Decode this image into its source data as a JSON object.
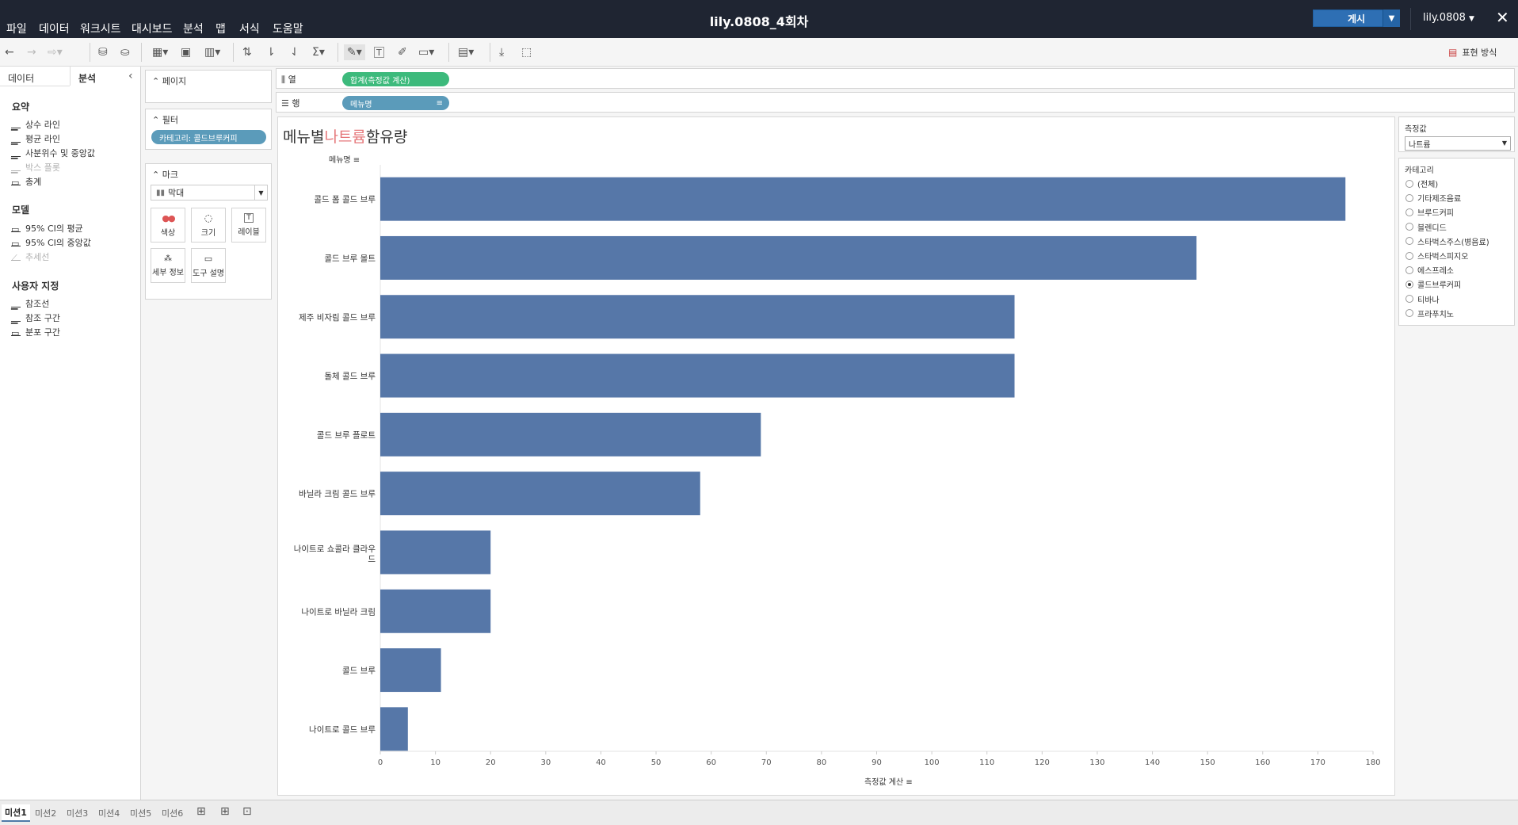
{
  "app": {
    "workbook_title": "lily.0808_4회차",
    "user": "lily.0808",
    "publish_label": "게시",
    "close_glyph": "✕",
    "menu": [
      "파일",
      "데이터",
      "워크시트",
      "대시보드",
      "분석",
      "맵",
      "서식",
      "도움말"
    ]
  },
  "toolbar": {
    "show_me_label": "표현 방식"
  },
  "left_panel": {
    "tabs": {
      "data": "데이터",
      "analysis": "분석"
    },
    "sections": [
      {
        "title": "요약",
        "items": [
          {
            "label": "상수 라인",
            "enabled": true
          },
          {
            "label": "평균 라인",
            "enabled": true
          },
          {
            "label": "사분위수 및 중앙값",
            "enabled": true
          },
          {
            "label": "박스 플롯",
            "enabled": false
          },
          {
            "label": "총계",
            "enabled": true
          }
        ]
      },
      {
        "title": "모델",
        "items": [
          {
            "label": "95% CI의 평균",
            "enabled": true
          },
          {
            "label": "95% CI의 중앙값",
            "enabled": true
          },
          {
            "label": "추세선",
            "enabled": false
          }
        ]
      },
      {
        "title": "사용자 지정",
        "items": [
          {
            "label": "참조선",
            "enabled": true
          },
          {
            "label": "참조 구간",
            "enabled": true
          },
          {
            "label": "분포 구간",
            "enabled": true
          }
        ]
      }
    ]
  },
  "cards": {
    "pages": "페이지",
    "filters": "필터",
    "filter_pill": "카테고리: 콜드브루커피",
    "marks": "마크",
    "mark_type": "막대",
    "mark_buttons": [
      "색상",
      "크기",
      "레이블",
      "세부 정보",
      "도구 설명"
    ]
  },
  "shelves": {
    "columns_label": "열",
    "columns_pill": "합계(측정값 계산)",
    "rows_label": "행",
    "rows_pill": "메뉴명"
  },
  "chart": {
    "title_before": "메뉴별",
    "title_highlight": "나트륨",
    "title_after": "함유량",
    "row_header": "메뉴명",
    "x_title": "측정값 계산"
  },
  "chart_data": {
    "type": "bar",
    "orientation": "horizontal",
    "categories": [
      "콜드 폼 콜드 브루",
      "콜드 브루 몰트",
      "제주 비자림 콜드 브루",
      "돌체 콜드 브루",
      "콜드 브루 플로트",
      "바닐라 크림 콜드 브루",
      "나이트로 쇼콜라 클라우드",
      "나이트로 바닐라 크림",
      "콜드 브루",
      "나이트로 콜드 브루"
    ],
    "values": [
      175,
      148,
      115,
      115,
      69,
      58,
      20,
      20,
      11,
      5
    ],
    "xlabel": "측정값 계산",
    "ylabel": "메뉴명",
    "xlim": [
      0,
      180
    ],
    "xticks": [
      0,
      10,
      20,
      30,
      40,
      50,
      60,
      70,
      80,
      90,
      100,
      110,
      120,
      130,
      140,
      150,
      160,
      170,
      180
    ],
    "bar_color": "#5677a8",
    "grid": false
  },
  "right_panel": {
    "measure_title": "측정값",
    "measure_value": "나트륨",
    "category_title": "카테고리",
    "options": [
      "(전체)",
      "기타제조음료",
      "브루드커피",
      "블렌디드",
      "스타벅스주스(병음료)",
      "스타벅스피지오",
      "에스프레소",
      "콜드브루커피",
      "티바나",
      "프라푸치노"
    ],
    "selected": "콜드브루커피"
  },
  "sheets": {
    "tabs": [
      "미션1",
      "미션2",
      "미션3",
      "미션4",
      "미션5",
      "미션6"
    ],
    "active": "미션1"
  },
  "colors": {
    "topbar": "#1f2532",
    "publish": "#2e6fb4",
    "pill_green": "#3dba7c",
    "pill_blue": "#5b9bba",
    "title_highlight": "#e5777a"
  }
}
